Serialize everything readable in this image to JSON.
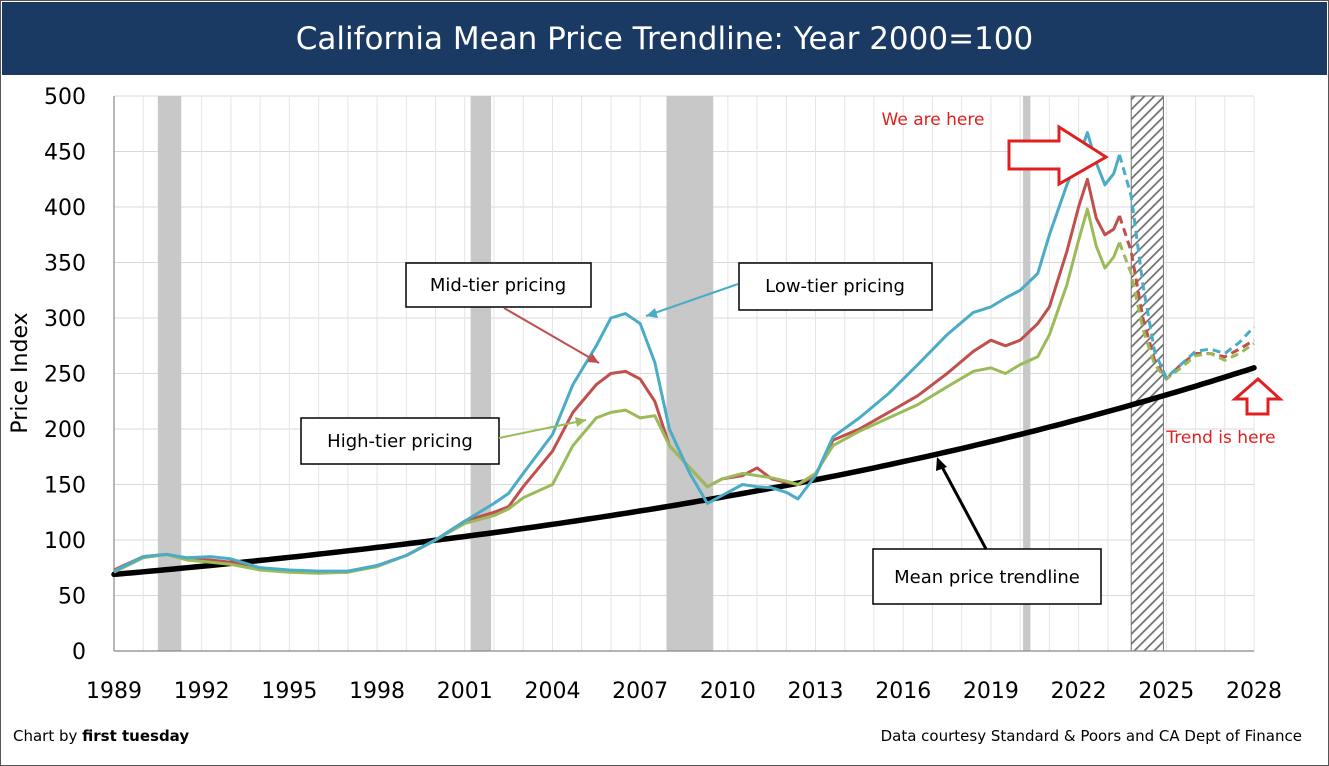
{
  "chart_data": {
    "type": "line",
    "title": "California Mean Price Trendline: Year 2000=100",
    "xlabel": "",
    "ylabel": "Price Index",
    "xlim": [
      1989,
      2028
    ],
    "ylim": [
      0,
      500
    ],
    "grid": true,
    "x_ticks": [
      "1989",
      "1992",
      "1995",
      "1998",
      "2001",
      "2004",
      "2007",
      "2010",
      "2013",
      "2016",
      "2019",
      "2022",
      "2025",
      "2028"
    ],
    "y_ticks": [
      "0",
      "50",
      "100",
      "150",
      "200",
      "250",
      "300",
      "350",
      "400",
      "450",
      "500"
    ],
    "recessions": [
      [
        1990.5,
        1991.3
      ],
      [
        2001.2,
        2001.9
      ],
      [
        2007.9,
        2009.5
      ],
      [
        2020.1,
        2020.35
      ]
    ],
    "forecast_region": [
      2023.8,
      2024.9
    ],
    "series": [
      {
        "name": "Low-tier pricing",
        "color": "#4aacc6",
        "actual": [
          [
            1989,
            72
          ],
          [
            1990,
            85
          ],
          [
            1990.8,
            87
          ],
          [
            1991.5,
            84
          ],
          [
            1992.3,
            85
          ],
          [
            1993,
            83
          ],
          [
            1994,
            75
          ],
          [
            1995,
            73
          ],
          [
            1996,
            72
          ],
          [
            1997,
            72
          ],
          [
            1998,
            77
          ],
          [
            1999,
            86
          ],
          [
            2000,
            100
          ],
          [
            2001,
            117
          ],
          [
            2002,
            133
          ],
          [
            2002.5,
            142
          ],
          [
            2003,
            160
          ],
          [
            2004,
            195
          ],
          [
            2004.7,
            240
          ],
          [
            2005.5,
            275
          ],
          [
            2006,
            300
          ],
          [
            2006.5,
            304
          ],
          [
            2007,
            295
          ],
          [
            2007.5,
            260
          ],
          [
            2008,
            200
          ],
          [
            2008.7,
            160
          ],
          [
            2009.3,
            133
          ],
          [
            2009.8,
            140
          ],
          [
            2010.5,
            150
          ],
          [
            2011,
            148
          ],
          [
            2011.5,
            147
          ],
          [
            2012,
            143
          ],
          [
            2012.4,
            137
          ],
          [
            2013,
            158
          ],
          [
            2013.6,
            193
          ],
          [
            2014.5,
            210
          ],
          [
            2015.5,
            232
          ],
          [
            2016.5,
            258
          ],
          [
            2017.5,
            285
          ],
          [
            2018.4,
            305
          ],
          [
            2019,
            310
          ],
          [
            2019.5,
            318
          ],
          [
            2020,
            325
          ],
          [
            2020.6,
            340
          ],
          [
            2021,
            375
          ],
          [
            2021.6,
            420
          ],
          [
            2022,
            445
          ],
          [
            2022.3,
            467
          ],
          [
            2022.6,
            440
          ],
          [
            2022.9,
            420
          ],
          [
            2023.2,
            430
          ],
          [
            2023.4,
            447
          ]
        ],
        "forecast": [
          [
            2023.4,
            447
          ],
          [
            2023.8,
            410
          ],
          [
            2024.2,
            330
          ],
          [
            2024.6,
            270
          ],
          [
            2025,
            246
          ],
          [
            2025.5,
            258
          ],
          [
            2026,
            270
          ],
          [
            2026.5,
            272
          ],
          [
            2027,
            268
          ],
          [
            2027.5,
            278
          ],
          [
            2028,
            292
          ]
        ]
      },
      {
        "name": "Mid-tier pricing",
        "color": "#c0504d",
        "actual": [
          [
            1989,
            73
          ],
          [
            1990,
            85
          ],
          [
            1990.8,
            87
          ],
          [
            1991.5,
            83
          ],
          [
            1992.3,
            82
          ],
          [
            1993,
            80
          ],
          [
            1994,
            75
          ],
          [
            1995,
            72
          ],
          [
            1996,
            71
          ],
          [
            1997,
            71
          ],
          [
            1998,
            77
          ],
          [
            1999,
            86
          ],
          [
            2000,
            100
          ],
          [
            2001,
            117
          ],
          [
            2002,
            125
          ],
          [
            2002.5,
            130
          ],
          [
            2003,
            148
          ],
          [
            2004,
            180
          ],
          [
            2004.7,
            215
          ],
          [
            2005.5,
            240
          ],
          [
            2006,
            250
          ],
          [
            2006.5,
            252
          ],
          [
            2007,
            245
          ],
          [
            2007.5,
            225
          ],
          [
            2008,
            185
          ],
          [
            2008.7,
            165
          ],
          [
            2009.3,
            148
          ],
          [
            2009.8,
            155
          ],
          [
            2010.5,
            158
          ],
          [
            2011,
            165
          ],
          [
            2011.5,
            155
          ],
          [
            2012,
            152
          ],
          [
            2012.4,
            150
          ],
          [
            2013,
            158
          ],
          [
            2013.6,
            190
          ],
          [
            2014.5,
            200
          ],
          [
            2015.5,
            215
          ],
          [
            2016.5,
            230
          ],
          [
            2017.5,
            250
          ],
          [
            2018.4,
            270
          ],
          [
            2019,
            280
          ],
          [
            2019.5,
            275
          ],
          [
            2020,
            280
          ],
          [
            2020.6,
            295
          ],
          [
            2021,
            310
          ],
          [
            2021.6,
            360
          ],
          [
            2022,
            400
          ],
          [
            2022.3,
            425
          ],
          [
            2022.6,
            390
          ],
          [
            2022.9,
            375
          ],
          [
            2023.2,
            380
          ],
          [
            2023.4,
            392
          ]
        ],
        "forecast": [
          [
            2023.4,
            392
          ],
          [
            2023.8,
            360
          ],
          [
            2024.2,
            300
          ],
          [
            2024.6,
            262
          ],
          [
            2025,
            245
          ],
          [
            2025.5,
            258
          ],
          [
            2026,
            268
          ],
          [
            2026.5,
            268
          ],
          [
            2027,
            265
          ],
          [
            2027.5,
            272
          ],
          [
            2028,
            280
          ]
        ]
      },
      {
        "name": "High-tier pricing",
        "color": "#9bbb59",
        "actual": [
          [
            1989,
            71
          ],
          [
            1990,
            84
          ],
          [
            1990.8,
            87
          ],
          [
            1991.5,
            82
          ],
          [
            1992.3,
            80
          ],
          [
            1993,
            78
          ],
          [
            1994,
            73
          ],
          [
            1995,
            71
          ],
          [
            1996,
            70
          ],
          [
            1997,
            71
          ],
          [
            1998,
            76
          ],
          [
            1999,
            86
          ],
          [
            2000,
            100
          ],
          [
            2001,
            115
          ],
          [
            2002,
            122
          ],
          [
            2002.5,
            128
          ],
          [
            2003,
            138
          ],
          [
            2004,
            150
          ],
          [
            2004.7,
            185
          ],
          [
            2005.5,
            210
          ],
          [
            2006,
            215
          ],
          [
            2006.5,
            217
          ],
          [
            2007,
            210
          ],
          [
            2007.5,
            212
          ],
          [
            2008,
            185
          ],
          [
            2008.7,
            165
          ],
          [
            2009.3,
            148
          ],
          [
            2009.8,
            155
          ],
          [
            2010.5,
            160
          ],
          [
            2011,
            158
          ],
          [
            2011.5,
            156
          ],
          [
            2012,
            153
          ],
          [
            2012.4,
            150
          ],
          [
            2013,
            160
          ],
          [
            2013.6,
            185
          ],
          [
            2014.5,
            198
          ],
          [
            2015.5,
            210
          ],
          [
            2016.5,
            222
          ],
          [
            2017.5,
            238
          ],
          [
            2018.4,
            252
          ],
          [
            2019,
            255
          ],
          [
            2019.5,
            250
          ],
          [
            2020,
            258
          ],
          [
            2020.6,
            265
          ],
          [
            2021,
            285
          ],
          [
            2021.6,
            330
          ],
          [
            2022,
            370
          ],
          [
            2022.3,
            398
          ],
          [
            2022.6,
            365
          ],
          [
            2022.9,
            345
          ],
          [
            2023.2,
            355
          ],
          [
            2023.4,
            368
          ]
        ],
        "forecast": [
          [
            2023.4,
            368
          ],
          [
            2023.8,
            340
          ],
          [
            2024.2,
            290
          ],
          [
            2024.6,
            258
          ],
          [
            2025,
            245
          ],
          [
            2025.5,
            255
          ],
          [
            2026,
            266
          ],
          [
            2026.5,
            268
          ],
          [
            2027,
            262
          ],
          [
            2027.5,
            268
          ],
          [
            2028,
            277
          ]
        ]
      },
      {
        "name": "Mean price trendline",
        "color": "#000000",
        "trend": {
          "start_year": 1989,
          "start_value": 69,
          "annual_growth": 0.0341
        }
      }
    ],
    "annotations": {
      "mid_tier": "Mid-tier pricing",
      "low_tier": "Low-tier pricing",
      "high_tier": "High-tier pricing",
      "trendline": "Mean price trendline",
      "we_are_here": "We are here",
      "trend_is_here": "Trend is here"
    }
  },
  "footer": {
    "credit_prefix": "Chart by ",
    "credit_name": "first tuesday",
    "source": "Data courtesy Standard & Poors and CA Dept of Finance"
  },
  "colors": {
    "title_bar": "#1b3a63",
    "callout_red": "#e02020",
    "recession": "#c8c8c8",
    "grid": "#d9d9d9"
  }
}
